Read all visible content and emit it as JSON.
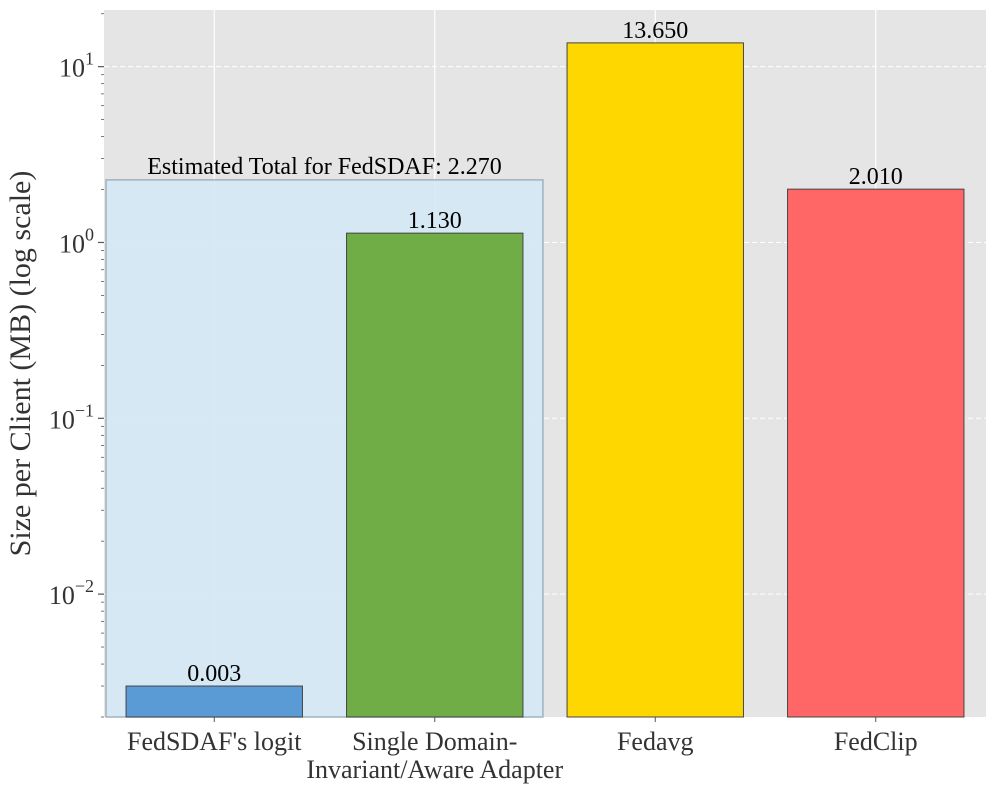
{
  "chart_data": {
    "type": "bar",
    "y_scale": "log",
    "ylabel": "Size per Client (MB) (log scale)",
    "xlabel": "",
    "title": "",
    "grid": true,
    "ylim": [
      0.002,
      21
    ],
    "y_ticks": [
      {
        "value": 0.01,
        "base": "10",
        "exp": "−2"
      },
      {
        "value": 0.1,
        "base": "10",
        "exp": "−1"
      },
      {
        "value": 1,
        "base": "10",
        "exp": "0"
      },
      {
        "value": 10,
        "base": "10",
        "exp": "1"
      }
    ],
    "categories": [
      {
        "line1": "FedSDAF's logit",
        "line2": ""
      },
      {
        "line1": "Single Domain-",
        "line2": "Invariant/Aware Adapter"
      },
      {
        "line1": "Fedavg",
        "line2": ""
      },
      {
        "line1": "FedClip",
        "line2": ""
      }
    ],
    "values": [
      0.003,
      1.13,
      13.65,
      2.01
    ],
    "value_labels": [
      "0.003",
      "1.130",
      "13.650",
      "2.010"
    ],
    "colors": [
      "#5b9bd5",
      "#70ad47",
      "#ffd700",
      "#ff6666"
    ],
    "annotation": {
      "text": "Estimated Total for FedSDAF: 2.270",
      "value": 2.27,
      "spans_categories": [
        0,
        1
      ],
      "color": "#d3e8f5"
    }
  }
}
